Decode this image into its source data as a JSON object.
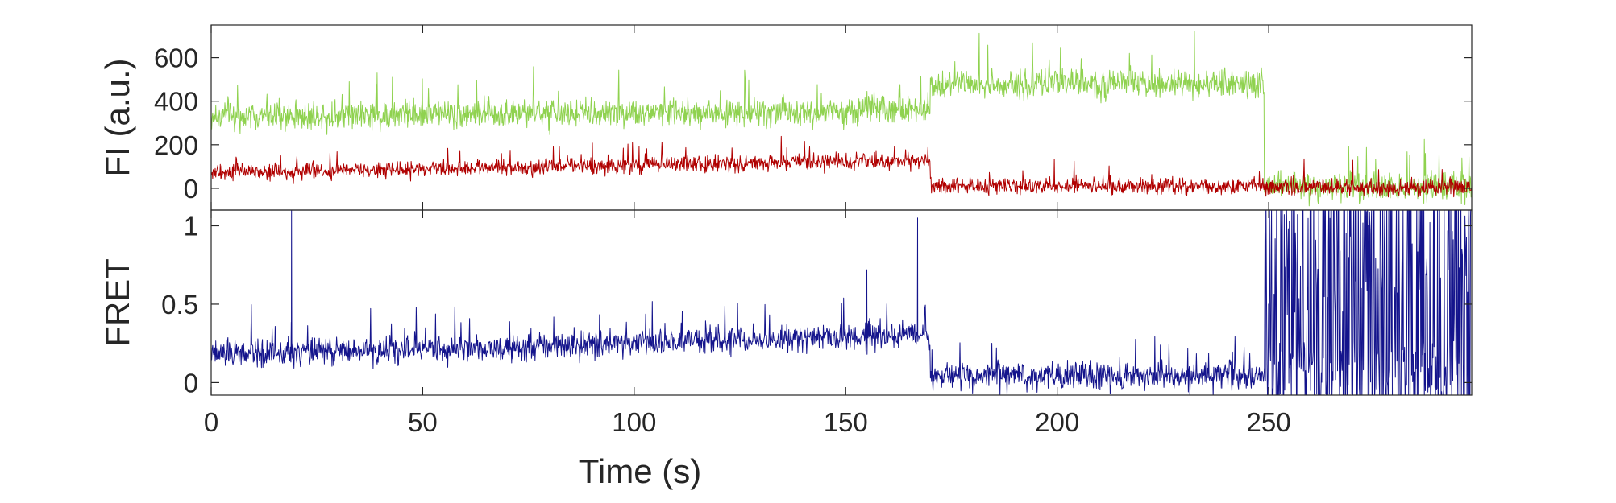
{
  "chart_data": [
    {
      "panel": "top",
      "type": "line",
      "ylabel": "FI (a.u.)",
      "xlabel": "",
      "xlim": [
        0,
        298
      ],
      "ylim": [
        -100,
        750
      ],
      "yticks": [
        0,
        200,
        400,
        600
      ],
      "ytick_labels": [
        "0",
        "200",
        "400",
        "600"
      ],
      "xticks": [
        0,
        50,
        100,
        150,
        200,
        250
      ],
      "x_tick_labels_shown": false,
      "grid": false,
      "series": [
        {
          "color": "#8fd24f",
          "noise": 70,
          "segments": [
            {
              "x_start": 0,
              "x_end": 170,
              "y_start": 330,
              "y_end": 360
            },
            {
              "x_start": 170,
              "x_end": 249,
              "y_start": 480,
              "y_end": 480
            },
            {
              "x_start": 249,
              "x_end": 298,
              "y_start": 10,
              "y_end": 10
            }
          ]
        },
        {
          "color": "#b00000",
          "noise": 40,
          "segments": [
            {
              "x_start": 0,
              "x_end": 170,
              "y_start": 70,
              "y_end": 130
            },
            {
              "x_start": 170,
              "x_end": 249,
              "y_start": 10,
              "y_end": 10
            },
            {
              "x_start": 249,
              "x_end": 298,
              "y_start": 5,
              "y_end": 5
            }
          ]
        }
      ]
    },
    {
      "panel": "bottom",
      "type": "line",
      "ylabel": "FRET",
      "xlabel": "Time (s)",
      "xlim": [
        0,
        298
      ],
      "ylim": [
        -0.08,
        1.1
      ],
      "yticks": [
        0,
        0.5,
        1
      ],
      "ytick_labels": [
        "0",
        "0.5",
        "1"
      ],
      "xticks": [
        0,
        50,
        100,
        150,
        200,
        250
      ],
      "xtick_labels": [
        "0",
        "50",
        "100",
        "150",
        "200",
        "250"
      ],
      "grid": false,
      "series": [
        {
          "color": "#14148c",
          "noise": 0.09,
          "segments": [
            {
              "x_start": 0,
              "x_end": 170,
              "y_start": 0.18,
              "y_end": 0.3
            },
            {
              "x_start": 170,
              "x_end": 249,
              "y_start": 0.04,
              "y_end": 0.04
            },
            {
              "x_start": 249,
              "x_end": 298,
              "y_start": 0.5,
              "y_end": 0.5,
              "erratic": true
            }
          ],
          "spikes": [
            {
              "x": 19,
              "y": 1.1
            },
            {
              "x": 167,
              "y": 1.05
            },
            {
              "x": 155,
              "y": 0.72
            }
          ]
        }
      ]
    }
  ]
}
